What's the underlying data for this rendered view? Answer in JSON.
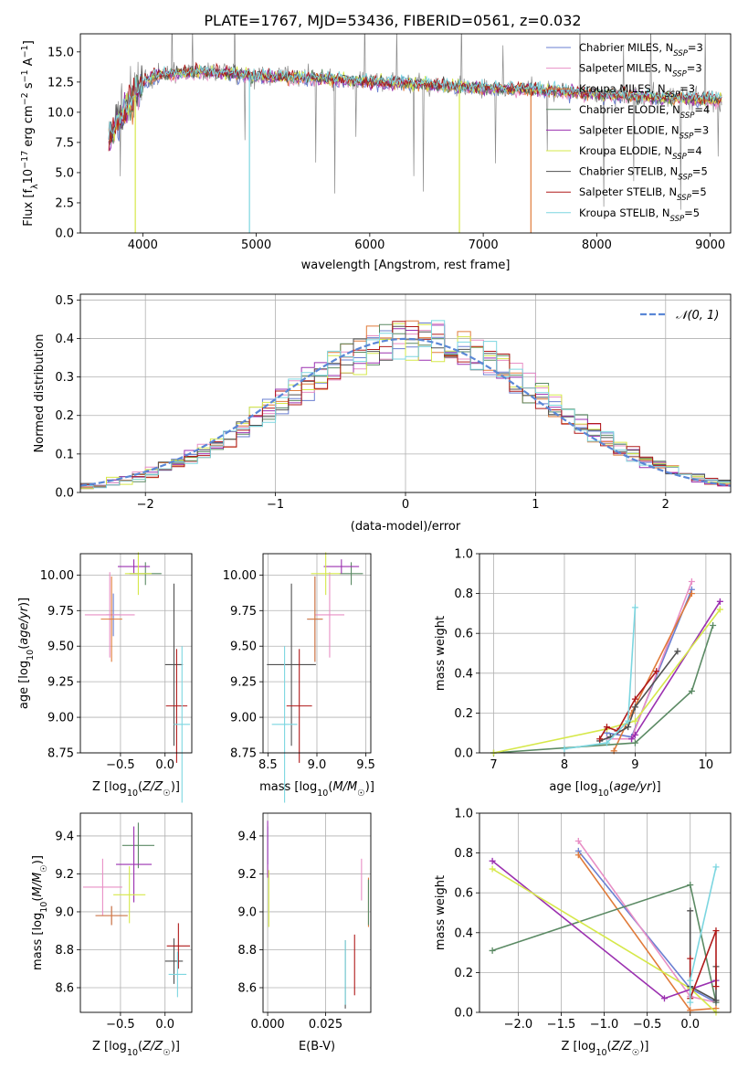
{
  "figure": {
    "title": "PLATE=1767, MJD=53436, FIBERID=0561, z=0.032"
  },
  "chart_data": [
    {
      "id": "spectrum",
      "type": "line",
      "xlabel": "wavelength [Angstrom, rest frame]",
      "ylabel": "Flux [f_λ10^-17 erg cm^-2 s^-1 A^-1]",
      "xlim": [
        3450,
        9180
      ],
      "ylim": [
        0,
        16.5
      ],
      "xticks": [
        4000,
        5000,
        6000,
        7000,
        8000,
        9000
      ],
      "yticks": [
        0.0,
        2.5,
        5.0,
        7.5,
        10.0,
        12.5,
        15.0
      ],
      "grid": false,
      "legend_position": "top-right",
      "continuum": {
        "x": [
          3700,
          3800,
          3900,
          3960,
          4000,
          4100,
          4300,
          4500,
          4800,
          5000,
          5300,
          5600,
          6000,
          6300,
          6600,
          7000,
          7300,
          7600,
          7700,
          8000,
          8400,
          8800,
          9100
        ],
        "y": [
          7.8,
          9.5,
          11.0,
          11.8,
          12.5,
          13.0,
          13.2,
          13.3,
          13.2,
          13.0,
          12.9,
          12.8,
          12.5,
          12.4,
          12.2,
          12.0,
          11.9,
          11.8,
          11.7,
          11.5,
          11.3,
          11.1,
          11.1
        ]
      },
      "observed_dips": [
        {
          "x": 3934,
          "y": 0.0
        },
        {
          "x": 4940,
          "y": 0.0
        },
        {
          "x": 6790,
          "y": 0.0
        },
        {
          "x": 7420,
          "y": 0.0
        }
      ],
      "series": [
        {
          "name": "Chabrier MILES, N_SSP=3",
          "color": "#6a7fd1"
        },
        {
          "name": "Salpeter MILES, N_SSP=3",
          "color": "#e88fc5"
        },
        {
          "name": "Kroupa MILES, N_SSP=3",
          "color": "#e07b3a"
        },
        {
          "name": "Chabrier ELODIE, N_SSP=4",
          "color": "#5b8a64"
        },
        {
          "name": "Salpeter ELODIE, N_SSP=3",
          "color": "#9b30b0"
        },
        {
          "name": "Kroupa ELODIE, N_SSP=4",
          "color": "#d6e84a"
        },
        {
          "name": "Chabrier STELIB, N_SSP=5",
          "color": "#505050"
        },
        {
          "name": "Salpeter STELIB, N_SSP=5",
          "color": "#b01a1a"
        },
        {
          "name": "Kroupa STELIB, N_SSP=5",
          "color": "#7cd6e0"
        }
      ],
      "data_color": "#8a8a8a"
    },
    {
      "id": "residuals",
      "type": "bar",
      "xlabel": "(data-model)/error",
      "ylabel": "Normed distribution",
      "xlim": [
        -2.5,
        2.5
      ],
      "ylim": [
        0,
        0.515
      ],
      "xticks": [
        -2,
        -1,
        0,
        1,
        2
      ],
      "yticks": [
        0.0,
        0.1,
        0.2,
        0.3,
        0.4,
        0.5
      ],
      "grid": true,
      "legend_position": "top-right",
      "bin_width": 0.1,
      "bin_start": -2.5,
      "gaussian_label": "𝒩(0, 1)",
      "gaussian_color": "#5a87d6"
    },
    {
      "id": "age_vs_Z",
      "type": "scatter",
      "xlabel": "Z [log10(Z/Z☉)]",
      "ylabel": "age  [log10(age/yr)]",
      "xlim": [
        -0.95,
        0.3
      ],
      "ylim": [
        8.75,
        10.15
      ],
      "xticks": [
        -0.5,
        0.0
      ],
      "yticks": [
        8.75,
        9.0,
        9.25,
        9.5,
        9.75,
        10.0
      ],
      "grid": true,
      "points": [
        {
          "series": 0,
          "x": -0.58,
          "y": 9.72,
          "xerr": 0.08,
          "yerr": 0.15
        },
        {
          "series": 1,
          "x": -0.62,
          "y": 9.72,
          "xerr": 0.28,
          "yerr": 0.3
        },
        {
          "series": 2,
          "x": -0.6,
          "y": 9.69,
          "xerr": 0.12,
          "yerr": 0.3
        },
        {
          "series": 3,
          "x": -0.22,
          "y": 10.01,
          "xerr": 0.18,
          "yerr": 0.08
        },
        {
          "series": 4,
          "x": -0.35,
          "y": 10.06,
          "xerr": 0.18,
          "yerr": 0.05
        },
        {
          "series": 5,
          "x": -0.3,
          "y": 10.01,
          "xerr": 0.15,
          "yerr": 0.15
        },
        {
          "series": 6,
          "x": 0.1,
          "y": 9.37,
          "xerr": 0.1,
          "yerr": 0.57
        },
        {
          "series": 7,
          "x": 0.13,
          "y": 9.08,
          "xerr": 0.12,
          "yerr": 0.4
        },
        {
          "series": 8,
          "x": 0.19,
          "y": 8.95,
          "xerr": 0.09,
          "yerr": 0.55
        }
      ]
    },
    {
      "id": "age_vs_mass",
      "type": "scatter",
      "xlabel": "mass [log10(M/M☉)]",
      "ylabel": "",
      "xlim": [
        8.45,
        9.55
      ],
      "ylim": [
        8.75,
        10.15
      ],
      "xticks": [
        8.5,
        9.0,
        9.5
      ],
      "yticks": [
        8.75,
        9.0,
        9.25,
        9.5,
        9.75,
        10.0
      ],
      "grid": true,
      "points": [
        {
          "series": 0,
          "x": 8.98,
          "y": 9.69,
          "xerr": 0.08,
          "yerr": 0.3
        },
        {
          "series": 1,
          "x": 9.13,
          "y": 9.72,
          "xerr": 0.15,
          "yerr": 0.3
        },
        {
          "series": 2,
          "x": 8.98,
          "y": 9.69,
          "xerr": 0.08,
          "yerr": 0.3
        },
        {
          "series": 3,
          "x": 9.35,
          "y": 10.01,
          "xerr": 0.12,
          "yerr": 0.08
        },
        {
          "series": 4,
          "x": 9.25,
          "y": 10.06,
          "xerr": 0.18,
          "yerr": 0.05
        },
        {
          "series": 5,
          "x": 9.09,
          "y": 10.01,
          "xerr": 0.15,
          "yerr": 0.15
        },
        {
          "series": 6,
          "x": 8.74,
          "y": 9.37,
          "xerr": 0.25,
          "yerr": 0.57
        },
        {
          "series": 7,
          "x": 8.82,
          "y": 9.08,
          "xerr": 0.13,
          "yerr": 0.4
        },
        {
          "series": 8,
          "x": 8.67,
          "y": 8.95,
          "xerr": 0.13,
          "yerr": 0.55
        }
      ]
    },
    {
      "id": "weight_vs_age",
      "type": "line",
      "xlabel": "age  [log10(age/yr)]",
      "ylabel": "mass weight",
      "xlim": [
        6.8,
        10.35
      ],
      "ylim": [
        0,
        1.0
      ],
      "xticks": [
        7,
        8,
        9,
        10
      ],
      "yticks": [
        0.0,
        0.2,
        0.4,
        0.6,
        0.8,
        1.0
      ],
      "grid": true,
      "lines": [
        {
          "series": 0,
          "x": [
            8.6,
            8.95,
            9.8
          ],
          "y": [
            0.1,
            0.08,
            0.82
          ]
        },
        {
          "series": 1,
          "x": [
            8.6,
            8.95,
            9.8
          ],
          "y": [
            0.07,
            0.07,
            0.86
          ]
        },
        {
          "series": 2,
          "x": [
            8.7,
            8.95,
            9.8
          ],
          "y": [
            0.01,
            0.2,
            0.8
          ]
        },
        {
          "series": 3,
          "x": [
            7.0,
            9.0,
            9.8,
            10.1
          ],
          "y": [
            0.0,
            0.05,
            0.31,
            0.64
          ]
        },
        {
          "series": 4,
          "x": [
            8.95,
            9.0,
            10.2
          ],
          "y": [
            0.07,
            0.09,
            0.76
          ]
        },
        {
          "series": 5,
          "x": [
            7.0,
            8.6,
            9.0,
            10.2
          ],
          "y": [
            0.0,
            0.12,
            0.16,
            0.72
          ]
        },
        {
          "series": 6,
          "x": [
            8.5,
            8.65,
            8.9,
            9.0,
            9.6
          ],
          "y": [
            0.06,
            0.08,
            0.13,
            0.23,
            0.51
          ]
        },
        {
          "series": 7,
          "x": [
            8.5,
            8.6,
            8.75,
            9.0,
            9.3
          ],
          "y": [
            0.07,
            0.13,
            0.11,
            0.27,
            0.41
          ]
        },
        {
          "series": 8,
          "x": [
            8.0,
            8.6,
            8.9,
            9.0
          ],
          "y": [
            0.02,
            0.05,
            0.16,
            0.73
          ]
        }
      ]
    },
    {
      "id": "mass_vs_Z",
      "type": "scatter",
      "xlabel": "Z [log10(Z/Z☉)]",
      "ylabel": "mass [log10(M/M☉)]",
      "xlim": [
        -0.95,
        0.3
      ],
      "ylim": [
        8.47,
        9.52
      ],
      "xticks": [
        -0.5,
        0.0
      ],
      "yticks": [
        8.6,
        8.8,
        9.0,
        9.2,
        9.4
      ],
      "grid": true,
      "points": [
        {
          "series": 0,
          "x": -0.6,
          "y": 8.98,
          "xerr": 0.18,
          "yerr": 0.05
        },
        {
          "series": 1,
          "x": -0.7,
          "y": 9.13,
          "xerr": 0.22,
          "yerr": 0.15
        },
        {
          "series": 2,
          "x": -0.6,
          "y": 8.98,
          "xerr": 0.18,
          "yerr": 0.05
        },
        {
          "series": 3,
          "x": -0.3,
          "y": 9.35,
          "xerr": 0.18,
          "yerr": 0.12
        },
        {
          "series": 4,
          "x": -0.35,
          "y": 9.25,
          "xerr": 0.2,
          "yerr": 0.2
        },
        {
          "series": 5,
          "x": -0.4,
          "y": 9.09,
          "xerr": 0.18,
          "yerr": 0.15
        },
        {
          "series": 6,
          "x": 0.1,
          "y": 8.74,
          "xerr": 0.1,
          "yerr": 0.12
        },
        {
          "series": 7,
          "x": 0.15,
          "y": 8.82,
          "xerr": 0.13,
          "yerr": 0.12
        },
        {
          "series": 8,
          "x": 0.14,
          "y": 8.67,
          "xerr": 0.1,
          "yerr": 0.12
        }
      ]
    },
    {
      "id": "mass_vs_EBV",
      "type": "scatter",
      "xlabel": "E(B-V)",
      "ylabel": "",
      "xlim": [
        -0.002,
        0.0445
      ],
      "ylim": [
        8.47,
        9.52
      ],
      "xticks": [
        0.0,
        0.025
      ],
      "xticklabels": [
        "0.000",
        "0.025"
      ],
      "yticks": [
        8.6,
        8.8,
        9.0,
        9.2,
        9.4
      ],
      "grid": true,
      "points": [
        {
          "series": 0,
          "x": 0.0,
          "y": 9.35,
          "xerr": 0,
          "yerr": 0.1
        },
        {
          "series": 1,
          "x": 0.0405,
          "y": 9.17,
          "xerr": 0,
          "yerr": 0.11
        },
        {
          "series": 2,
          "x": 0.0435,
          "y": 9.05,
          "xerr": 0,
          "yerr": 0.13
        },
        {
          "series": 3,
          "x": 0.0435,
          "y": 9.05,
          "xerr": 0,
          "yerr": 0.12
        },
        {
          "series": 4,
          "x": 0.0,
          "y": 9.33,
          "xerr": 0,
          "yerr": 0.15
        },
        {
          "series": 5,
          "x": 0.0005,
          "y": 9.07,
          "xerr": 0,
          "yerr": 0.15
        },
        {
          "series": 6,
          "x": 0.0335,
          "y": 8.67,
          "xerr": 0,
          "yerr": 0.18
        },
        {
          "series": 7,
          "x": 0.0375,
          "y": 8.72,
          "xerr": 0,
          "yerr": 0.16
        },
        {
          "series": 8,
          "x": 0.0335,
          "y": 8.68,
          "xerr": 0,
          "yerr": 0.17
        }
      ]
    },
    {
      "id": "weight_vs_Z",
      "type": "line",
      "xlabel": "Z [log10(Z/Z☉)]",
      "ylabel": "mass weight",
      "xlim": [
        -2.45,
        0.47
      ],
      "ylim": [
        0,
        1.0
      ],
      "xticks": [
        -2.0,
        -1.5,
        -1.0,
        -0.5,
        0.0
      ],
      "yticks": [
        0.0,
        0.2,
        0.4,
        0.6,
        0.8,
        1.0
      ],
      "grid": true,
      "lines": [
        {
          "series": 0,
          "x": [
            -1.3,
            0.0,
            0.3
          ],
          "y": [
            0.81,
            0.12,
            0.05
          ]
        },
        {
          "series": 1,
          "x": [
            -1.3,
            0.0,
            0.3
          ],
          "y": [
            0.86,
            0.08,
            0.05
          ]
        },
        {
          "series": 2,
          "x": [
            -1.3,
            0.0,
            0.3
          ],
          "y": [
            0.79,
            0.01,
            0.02
          ]
        },
        {
          "series": 3,
          "x": [
            -2.3,
            0.0,
            0.3
          ],
          "y": [
            0.31,
            0.64,
            0.05
          ]
        },
        {
          "series": 4,
          "x": [
            -2.3,
            -0.3,
            0.3
          ],
          "y": [
            0.76,
            0.07,
            0.16
          ]
        },
        {
          "series": 5,
          "x": [
            -2.3,
            0.0,
            0.3
          ],
          "y": [
            0.72,
            0.12,
            0.0
          ]
        },
        {
          "series": 6,
          "x": [
            0.0,
            0.0,
            0.3,
            0.3
          ],
          "y": [
            0.51,
            0.13,
            0.06,
            0.23
          ]
        },
        {
          "series": 7,
          "x": [
            0.0,
            0.0,
            0.3,
            0.3
          ],
          "y": [
            0.27,
            0.07,
            0.41,
            0.13
          ]
        },
        {
          "series": 8,
          "x": [
            0.0,
            0.0,
            0.3
          ],
          "y": [
            0.05,
            0.16,
            0.73
          ]
        }
      ]
    }
  ]
}
